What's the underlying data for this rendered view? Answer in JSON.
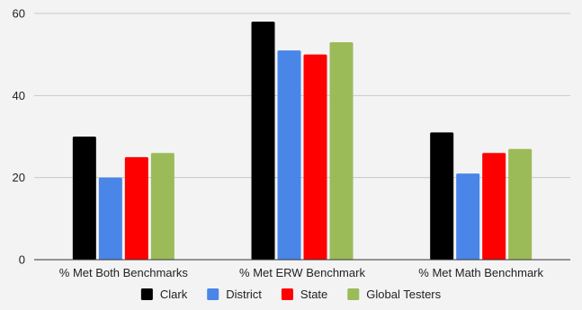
{
  "chart_data": {
    "type": "bar",
    "categories": [
      "% Met Both Benchmarks",
      "% Met ERW Benchmark",
      "% Met Math Benchmark"
    ],
    "series": [
      {
        "name": "Clark",
        "color": "#000000",
        "values": [
          30,
          58,
          31
        ]
      },
      {
        "name": "District",
        "color": "#4a86e8",
        "values": [
          20,
          51,
          21
        ]
      },
      {
        "name": "State",
        "color": "#ff0000",
        "values": [
          25,
          50,
          26
        ]
      },
      {
        "name": "Global Testers",
        "color": "#9bbb59",
        "values": [
          26,
          53,
          27
        ]
      }
    ],
    "y_ticks": [
      "0",
      "20",
      "40",
      "60"
    ],
    "ylim": [
      0,
      60
    ],
    "grid": true,
    "legend_position": "bottom-center",
    "title": "",
    "xlabel": "",
    "ylabel": ""
  }
}
